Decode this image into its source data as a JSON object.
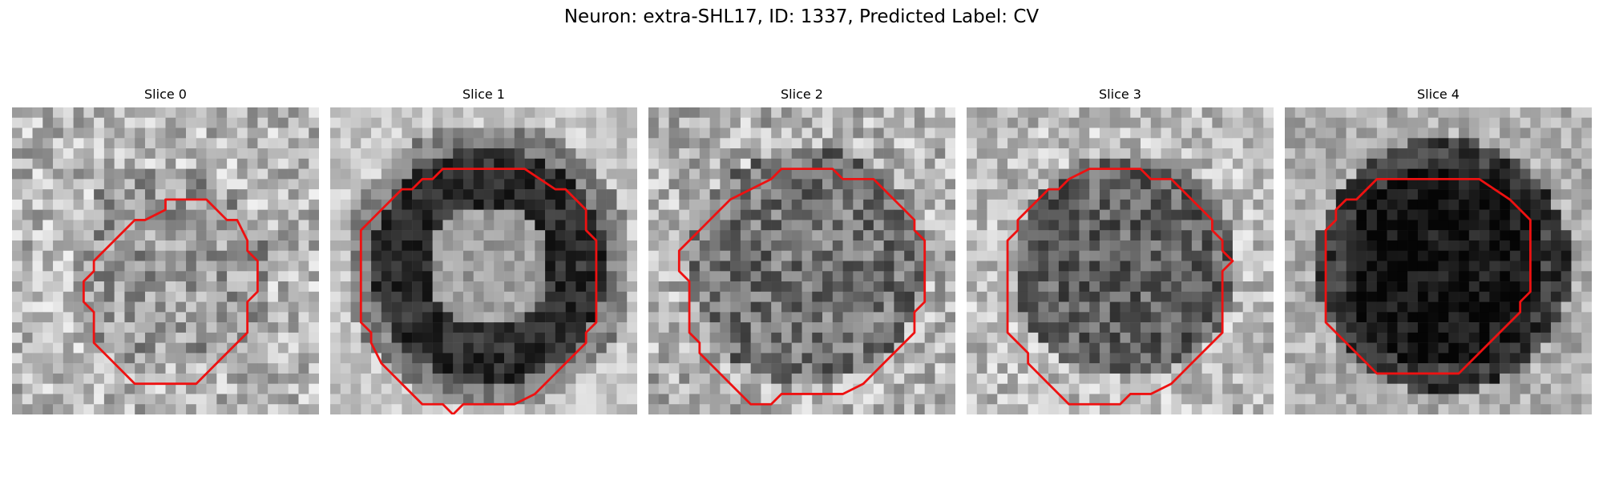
{
  "title": "Neuron: extra-SHL17, ID: 1337, Predicted Label: CV",
  "contour_color": "#ee1111",
  "panels": [
    {
      "title": "Slice 0",
      "style": "faint-ring",
      "seed": 11,
      "contour": [
        [
          17,
          9
        ],
        [
          19,
          9
        ],
        [
          21,
          11
        ],
        [
          22,
          11
        ],
        [
          23,
          13
        ],
        [
          23,
          14
        ],
        [
          24,
          15
        ],
        [
          24,
          18
        ],
        [
          23,
          19
        ],
        [
          23,
          22
        ],
        [
          22,
          23
        ],
        [
          21,
          24
        ],
        [
          20,
          25
        ],
        [
          19,
          26
        ],
        [
          18,
          27
        ],
        [
          12,
          27
        ],
        [
          9,
          24
        ],
        [
          8,
          23
        ],
        [
          8,
          20
        ],
        [
          7,
          19
        ],
        [
          7,
          17
        ],
        [
          8,
          16
        ],
        [
          8,
          15
        ],
        [
          9,
          14
        ],
        [
          10,
          13
        ],
        [
          11,
          12
        ],
        [
          12,
          11
        ],
        [
          13,
          11
        ],
        [
          15,
          10
        ],
        [
          15,
          9
        ]
      ]
    },
    {
      "title": "Slice 1",
      "style": "dark-ring",
      "seed": 23,
      "contour": [
        [
          11,
          6
        ],
        [
          19,
          6
        ],
        [
          22,
          8
        ],
        [
          23,
          8
        ],
        [
          25,
          10
        ],
        [
          25,
          12
        ],
        [
          26,
          13
        ],
        [
          26,
          14
        ],
        [
          26,
          21
        ],
        [
          25,
          22
        ],
        [
          25,
          23
        ],
        [
          24,
          24
        ],
        [
          23,
          25
        ],
        [
          22,
          26
        ],
        [
          21,
          27
        ],
        [
          20,
          28
        ],
        [
          18,
          29
        ],
        [
          13,
          29
        ],
        [
          12,
          30
        ],
        [
          11,
          29
        ],
        [
          9,
          29
        ],
        [
          6,
          26
        ],
        [
          5,
          25
        ],
        [
          4,
          23
        ],
        [
          4,
          22
        ],
        [
          3,
          21
        ],
        [
          3,
          12
        ],
        [
          4,
          11
        ],
        [
          5,
          10
        ],
        [
          6,
          9
        ],
        [
          7,
          8
        ],
        [
          8,
          8
        ],
        [
          9,
          7
        ],
        [
          10,
          7
        ]
      ]
    },
    {
      "title": "Slice 2",
      "style": "mid-disk",
      "seed": 37,
      "contour": [
        [
          13,
          6
        ],
        [
          18,
          6
        ],
        [
          19,
          7
        ],
        [
          22,
          7
        ],
        [
          23,
          8
        ],
        [
          24,
          9
        ],
        [
          25,
          10
        ],
        [
          26,
          11
        ],
        [
          26,
          12
        ],
        [
          27,
          13
        ],
        [
          27,
          19
        ],
        [
          26,
          20
        ],
        [
          26,
          22
        ],
        [
          25,
          23
        ],
        [
          24,
          24
        ],
        [
          23,
          25
        ],
        [
          22,
          26
        ],
        [
          21,
          27
        ],
        [
          19,
          28
        ],
        [
          13,
          28
        ],
        [
          12,
          29
        ],
        [
          10,
          29
        ],
        [
          9,
          28
        ],
        [
          8,
          27
        ],
        [
          7,
          26
        ],
        [
          6,
          25
        ],
        [
          5,
          24
        ],
        [
          5,
          23
        ],
        [
          4,
          22
        ],
        [
          4,
          17
        ],
        [
          3,
          16
        ],
        [
          3,
          14
        ],
        [
          4,
          13
        ],
        [
          5,
          12
        ],
        [
          6,
          11
        ],
        [
          7,
          10
        ],
        [
          8,
          9
        ],
        [
          10,
          8
        ],
        [
          12,
          7
        ]
      ]
    },
    {
      "title": "Slice 3",
      "style": "mid-disk-2",
      "seed": 53,
      "contour": [
        [
          12,
          6
        ],
        [
          17,
          6
        ],
        [
          18,
          7
        ],
        [
          20,
          7
        ],
        [
          21,
          8
        ],
        [
          22,
          9
        ],
        [
          23,
          10
        ],
        [
          24,
          11
        ],
        [
          24,
          12
        ],
        [
          25,
          13
        ],
        [
          25,
          14
        ],
        [
          26,
          15
        ],
        [
          25,
          16
        ],
        [
          25,
          22
        ],
        [
          24,
          23
        ],
        [
          23,
          24
        ],
        [
          22,
          25
        ],
        [
          21,
          26
        ],
        [
          20,
          27
        ],
        [
          18,
          28
        ],
        [
          16,
          28
        ],
        [
          15,
          29
        ],
        [
          10,
          29
        ],
        [
          9,
          28
        ],
        [
          8,
          27
        ],
        [
          7,
          26
        ],
        [
          6,
          25
        ],
        [
          6,
          24
        ],
        [
          5,
          23
        ],
        [
          4,
          22
        ],
        [
          4,
          13
        ],
        [
          5,
          12
        ],
        [
          5,
          11
        ],
        [
          6,
          10
        ],
        [
          7,
          9
        ],
        [
          8,
          8
        ],
        [
          9,
          8
        ],
        [
          10,
          7
        ]
      ]
    },
    {
      "title": "Slice 4",
      "style": "dark-disk",
      "seed": 71,
      "contour": [
        [
          9,
          7
        ],
        [
          19,
          7
        ],
        [
          22,
          9
        ],
        [
          24,
          11
        ],
        [
          24,
          18
        ],
        [
          23,
          19
        ],
        [
          23,
          20
        ],
        [
          22,
          21
        ],
        [
          21,
          22
        ],
        [
          20,
          23
        ],
        [
          19,
          24
        ],
        [
          18,
          25
        ],
        [
          17,
          26
        ],
        [
          9,
          26
        ],
        [
          8,
          25
        ],
        [
          7,
          24
        ],
        [
          6,
          23
        ],
        [
          5,
          22
        ],
        [
          4,
          21
        ],
        [
          4,
          12
        ],
        [
          5,
          11
        ],
        [
          5,
          10
        ],
        [
          6,
          9
        ],
        [
          7,
          9
        ],
        [
          8,
          8
        ]
      ]
    }
  ]
}
